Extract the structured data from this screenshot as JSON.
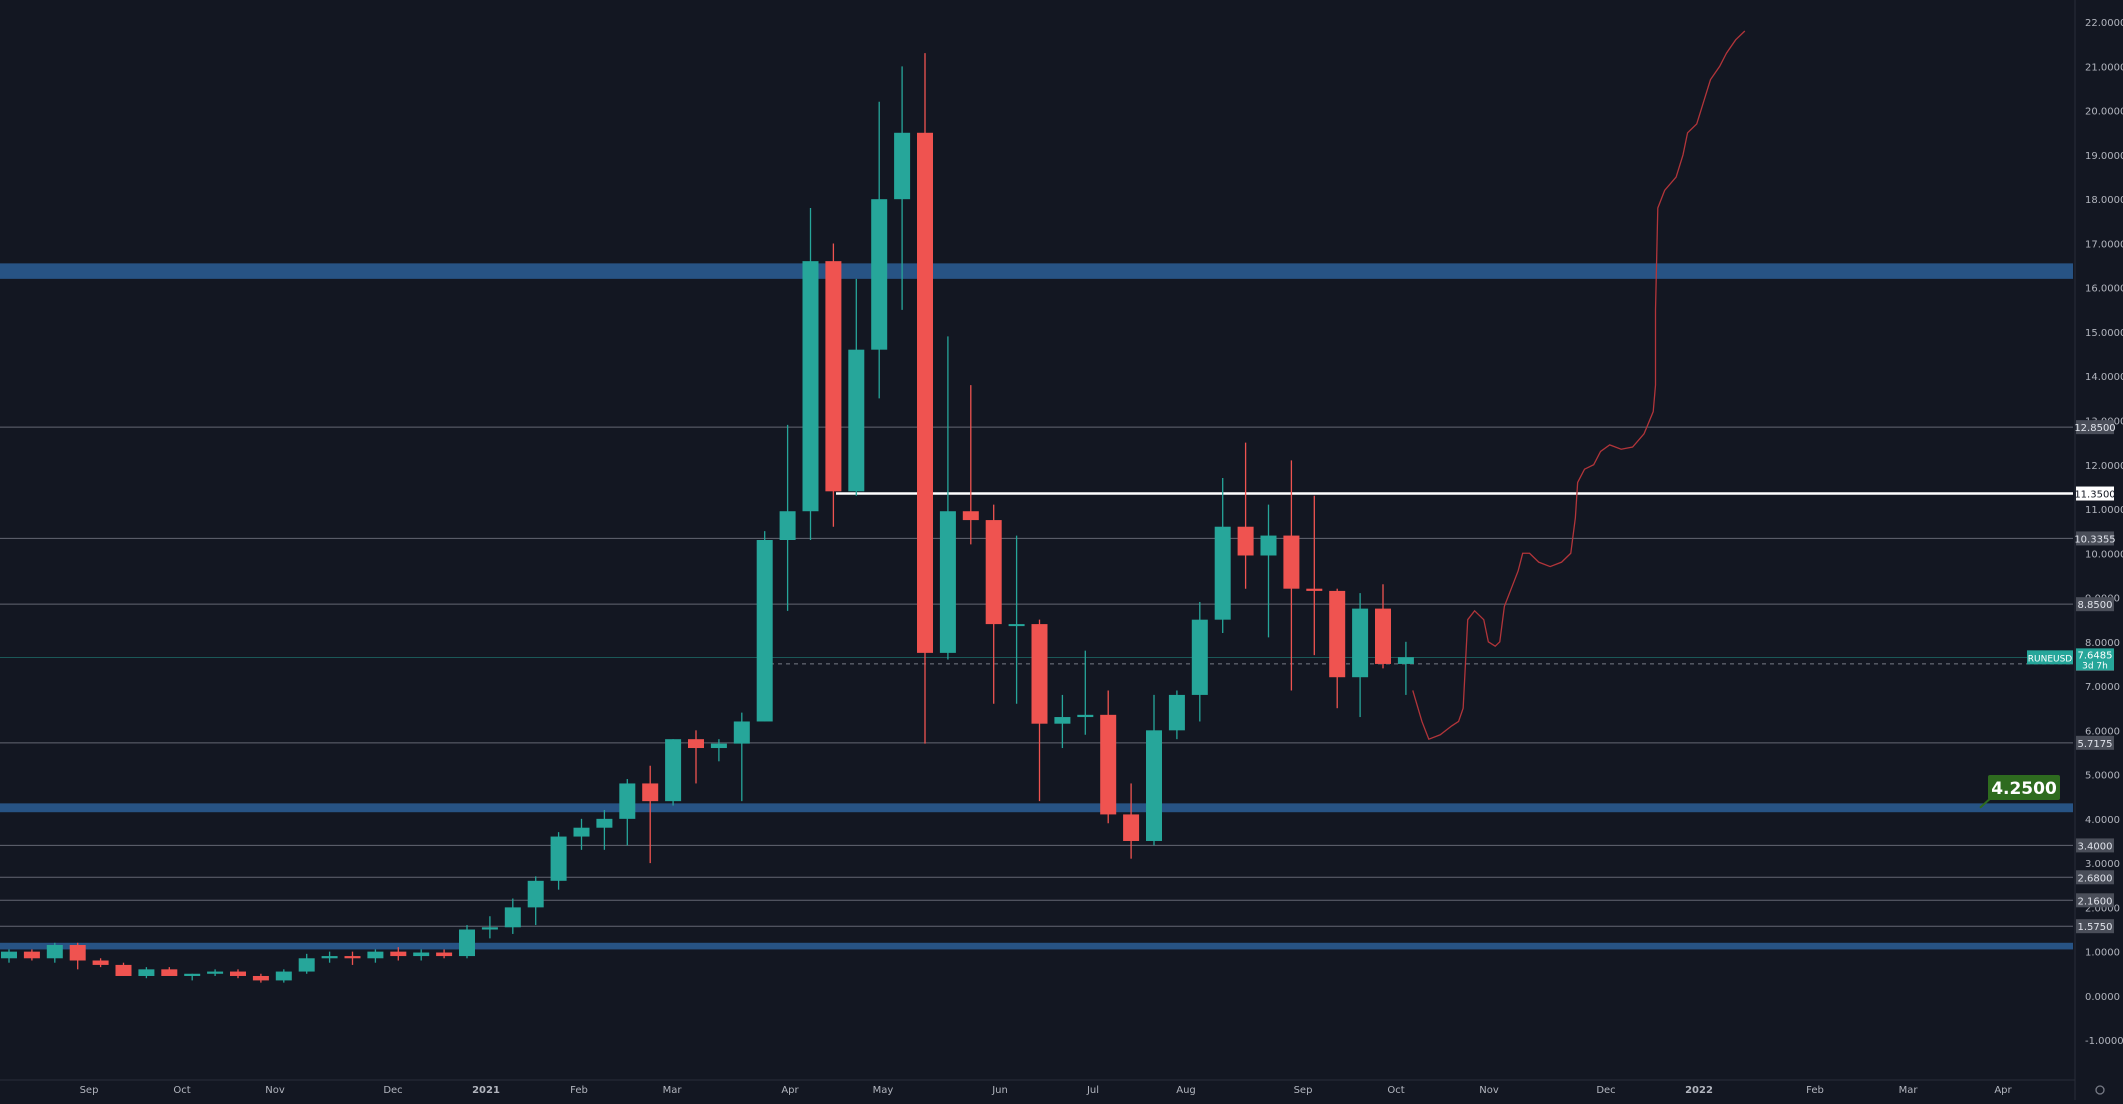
{
  "chart_data": {
    "type": "candlestick",
    "interval": "weekly",
    "colors": {
      "background": "#131722",
      "up": "#26a69a",
      "down": "#ef5350",
      "zone": "#2a5a8f",
      "level_line": "#787b86",
      "key_level": "#ffffff",
      "projection": "#b2353a",
      "target_badge": "#2e6b1f",
      "axis_text": "#b2b5be"
    },
    "y_axis": {
      "ticks": [
        "22.0000",
        "21.0000",
        "20.0000",
        "19.0000",
        "18.0000",
        "17.0000",
        "16.0000",
        "15.0000",
        "14.0000",
        "13.0000",
        "12.0000",
        "11.0000",
        "10.0000",
        "9.0000",
        "8.0000",
        "7.0000",
        "6.0000",
        "5.0000",
        "4.0000",
        "3.0000",
        "2.0000",
        "1.0000",
        "0.0000",
        "-1.0000"
      ],
      "range": [
        -1.9,
        22.5
      ]
    },
    "x_axis": {
      "labels": [
        "Sep",
        "Oct",
        "Nov",
        "Dec",
        "2021",
        "Feb",
        "Mar",
        "Apr",
        "May",
        "Jun",
        "Jul",
        "Aug",
        "Sep",
        "Oct",
        "Nov",
        "Dec",
        "2022",
        "Feb",
        "Mar",
        "Apr"
      ]
    },
    "candles": [
      {
        "o": 0.85,
        "h": 1.05,
        "l": 0.75,
        "c": 1.0
      },
      {
        "o": 1.0,
        "h": 1.05,
        "l": 0.8,
        "c": 0.85
      },
      {
        "o": 0.85,
        "h": 1.2,
        "l": 0.75,
        "c": 1.15
      },
      {
        "o": 1.15,
        "h": 1.2,
        "l": 0.6,
        "c": 0.8
      },
      {
        "o": 0.8,
        "h": 0.85,
        "l": 0.65,
        "c": 0.7
      },
      {
        "o": 0.7,
        "h": 0.75,
        "l": 0.45,
        "c": 0.45
      },
      {
        "o": 0.45,
        "h": 0.65,
        "l": 0.4,
        "c": 0.6
      },
      {
        "o": 0.6,
        "h": 0.65,
        "l": 0.45,
        "c": 0.45
      },
      {
        "o": 0.45,
        "h": 0.5,
        "l": 0.35,
        "c": 0.5
      },
      {
        "o": 0.5,
        "h": 0.6,
        "l": 0.45,
        "c": 0.55
      },
      {
        "o": 0.55,
        "h": 0.6,
        "l": 0.4,
        "c": 0.45
      },
      {
        "o": 0.45,
        "h": 0.5,
        "l": 0.3,
        "c": 0.35
      },
      {
        "o": 0.35,
        "h": 0.6,
        "l": 0.3,
        "c": 0.55
      },
      {
        "o": 0.55,
        "h": 0.95,
        "l": 0.5,
        "c": 0.85
      },
      {
        "o": 0.85,
        "h": 1.0,
        "l": 0.75,
        "c": 0.9
      },
      {
        "o": 0.9,
        "h": 1.0,
        "l": 0.7,
        "c": 0.85
      },
      {
        "o": 0.85,
        "h": 1.05,
        "l": 0.75,
        "c": 1.0
      },
      {
        "o": 1.0,
        "h": 1.1,
        "l": 0.8,
        "c": 0.9
      },
      {
        "o": 0.9,
        "h": 1.05,
        "l": 0.8,
        "c": 0.98
      },
      {
        "o": 0.98,
        "h": 1.05,
        "l": 0.85,
        "c": 0.9
      },
      {
        "o": 0.9,
        "h": 1.6,
        "l": 0.85,
        "c": 1.5
      },
      {
        "o": 1.5,
        "h": 1.8,
        "l": 1.3,
        "c": 1.55
      },
      {
        "o": 1.55,
        "h": 2.2,
        "l": 1.4,
        "c": 2.0
      },
      {
        "o": 2.0,
        "h": 2.7,
        "l": 1.6,
        "c": 2.6
      },
      {
        "o": 2.6,
        "h": 3.7,
        "l": 2.4,
        "c": 3.6
      },
      {
        "o": 3.6,
        "h": 4.0,
        "l": 3.3,
        "c": 3.8
      },
      {
        "o": 3.8,
        "h": 4.2,
        "l": 3.3,
        "c": 4.0
      },
      {
        "o": 4.0,
        "h": 4.9,
        "l": 3.4,
        "c": 4.8
      },
      {
        "o": 4.8,
        "h": 5.2,
        "l": 3.0,
        "c": 4.4
      },
      {
        "o": 4.4,
        "h": 5.8,
        "l": 4.3,
        "c": 5.8
      },
      {
        "o": 5.8,
        "h": 6.0,
        "l": 4.8,
        "c": 5.6
      },
      {
        "o": 5.6,
        "h": 5.8,
        "l": 5.3,
        "c": 5.7
      },
      {
        "o": 5.7,
        "h": 6.4,
        "l": 4.4,
        "c": 6.2
      },
      {
        "o": 6.2,
        "h": 10.5,
        "l": 6.2,
        "c": 10.3
      },
      {
        "o": 10.3,
        "h": 12.9,
        "l": 8.7,
        "c": 10.95
      },
      {
        "o": 10.95,
        "h": 17.8,
        "l": 10.3,
        "c": 16.6
      },
      {
        "o": 16.6,
        "h": 17.0,
        "l": 10.6,
        "c": 11.4
      },
      {
        "o": 11.4,
        "h": 16.2,
        "l": 11.3,
        "c": 14.6
      },
      {
        "o": 14.6,
        "h": 20.2,
        "l": 13.5,
        "c": 18.0
      },
      {
        "o": 18.0,
        "h": 21.0,
        "l": 15.5,
        "c": 19.5
      },
      {
        "o": 19.5,
        "h": 21.3,
        "l": 5.7,
        "c": 7.75
      },
      {
        "o": 7.75,
        "h": 14.9,
        "l": 7.6,
        "c": 10.95
      },
      {
        "o": 10.95,
        "h": 13.8,
        "l": 10.2,
        "c": 10.75
      },
      {
        "o": 10.75,
        "h": 11.1,
        "l": 6.6,
        "c": 8.4
      },
      {
        "o": 8.4,
        "h": 10.4,
        "l": 6.6,
        "c": 8.4
      },
      {
        "o": 8.4,
        "h": 8.5,
        "l": 4.4,
        "c": 6.15
      },
      {
        "o": 6.15,
        "h": 6.8,
        "l": 5.6,
        "c": 6.3
      },
      {
        "o": 6.3,
        "h": 7.8,
        "l": 5.9,
        "c": 6.35
      },
      {
        "o": 6.35,
        "h": 6.9,
        "l": 3.9,
        "c": 4.1
      },
      {
        "o": 4.1,
        "h": 4.8,
        "l": 3.1,
        "c": 3.5
      },
      {
        "o": 3.5,
        "h": 6.8,
        "l": 3.4,
        "c": 6.0
      },
      {
        "o": 6.0,
        "h": 6.9,
        "l": 5.8,
        "c": 6.8
      },
      {
        "o": 6.8,
        "h": 8.9,
        "l": 6.2,
        "c": 8.5
      },
      {
        "o": 8.5,
        "h": 11.7,
        "l": 8.2,
        "c": 10.6
      },
      {
        "o": 10.6,
        "h": 12.5,
        "l": 9.2,
        "c": 9.95
      },
      {
        "o": 9.95,
        "h": 11.1,
        "l": 8.1,
        "c": 10.4
      },
      {
        "o": 10.4,
        "h": 12.1,
        "l": 6.9,
        "c": 9.2
      },
      {
        "o": 9.2,
        "h": 11.3,
        "l": 7.7,
        "c": 9.15
      },
      {
        "o": 9.15,
        "h": 9.2,
        "l": 6.5,
        "c": 7.2
      },
      {
        "o": 7.2,
        "h": 9.1,
        "l": 6.3,
        "c": 8.75
      },
      {
        "o": 8.75,
        "h": 9.3,
        "l": 7.4,
        "c": 7.5
      },
      {
        "o": 7.5,
        "h": 8.0,
        "l": 6.8,
        "c": 7.65
      }
    ],
    "levels": [
      {
        "value": 12.85,
        "label": "12.8500"
      },
      {
        "value": 10.3355,
        "label": "10.3355"
      },
      {
        "value": 8.85,
        "label": "8.8500"
      },
      {
        "value": 5.7175,
        "label": "5.7175"
      },
      {
        "value": 3.4,
        "label": "3.4000"
      },
      {
        "value": 2.68,
        "label": "2.6800"
      },
      {
        "value": 2.16,
        "label": "2.1600"
      },
      {
        "value": 1.575,
        "label": "1.5750"
      }
    ],
    "key_level": {
      "value": 11.35,
      "label": "11.3500"
    },
    "current": {
      "symbol": "RUNEUSD",
      "price": "7.6485",
      "countdown": "3d 7h",
      "value": 7.6485
    },
    "dashed_level": {
      "value": 7.5,
      "label": "7.5000"
    },
    "zones": [
      {
        "low": 16.2,
        "high": 16.55
      },
      {
        "low": 4.15,
        "high": 4.35
      },
      {
        "low": 1.05,
        "high": 1.2
      }
    ],
    "target": {
      "value": 4.25,
      "label": "4.2500"
    },
    "projection": [
      [
        61.3,
        6.9
      ],
      [
        61.7,
        6.2
      ],
      [
        62.0,
        5.8
      ],
      [
        62.5,
        5.9
      ],
      [
        63.0,
        6.1
      ],
      [
        63.3,
        6.2
      ],
      [
        63.5,
        6.5
      ],
      [
        63.6,
        7.5
      ],
      [
        63.7,
        8.5
      ],
      [
        64.0,
        8.7
      ],
      [
        64.4,
        8.5
      ],
      [
        64.6,
        8.0
      ],
      [
        64.9,
        7.9
      ],
      [
        65.1,
        8.0
      ],
      [
        65.3,
        8.8
      ],
      [
        65.6,
        9.2
      ],
      [
        65.9,
        9.6
      ],
      [
        66.1,
        10.0
      ],
      [
        66.4,
        10.0
      ],
      [
        66.8,
        9.8
      ],
      [
        67.3,
        9.7
      ],
      [
        67.8,
        9.8
      ],
      [
        68.2,
        10.0
      ],
      [
        68.4,
        10.8
      ],
      [
        68.5,
        11.6
      ],
      [
        68.8,
        11.9
      ],
      [
        69.2,
        12.0
      ],
      [
        69.5,
        12.3
      ],
      [
        69.9,
        12.45
      ],
      [
        70.4,
        12.35
      ],
      [
        70.9,
        12.4
      ],
      [
        71.4,
        12.7
      ],
      [
        71.8,
        13.2
      ],
      [
        71.9,
        13.8
      ],
      [
        71.9,
        15.5
      ],
      [
        72.0,
        17.8
      ],
      [
        72.3,
        18.2
      ],
      [
        72.8,
        18.5
      ],
      [
        73.1,
        19.0
      ],
      [
        73.3,
        19.5
      ],
      [
        73.7,
        19.7
      ],
      [
        74.0,
        20.2
      ],
      [
        74.3,
        20.7
      ],
      [
        74.7,
        21.0
      ],
      [
        75.0,
        21.3
      ],
      [
        75.4,
        21.6
      ],
      [
        75.8,
        21.8
      ]
    ]
  }
}
